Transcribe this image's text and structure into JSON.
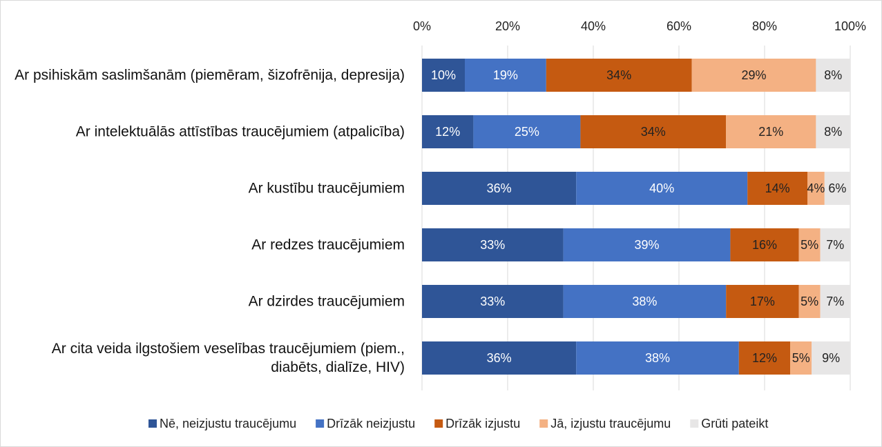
{
  "chart_data": {
    "type": "stacked-bar-horizontal",
    "categories": [
      "Ar psihiskām saslimšanām (piemēram, šizofrēnija, depresija)",
      "Ar intelektuālās attīstības traucējumiem (atpalicība)",
      "Ar kustību traucējumiem",
      "Ar redzes traucējumiem",
      "Ar dzirdes traucējumiem",
      "Ar cita veida ilgstošiem veselības traucējumiem (piem., diabēts, dialīze, HIV)"
    ],
    "series": [
      {
        "name": "Nē, neizjustu traucējumu",
        "color": "#2f5597",
        "values": [
          10,
          12,
          36,
          33,
          33,
          36
        ],
        "value_labels": [
          "10%",
          "12%",
          "36%",
          "33%",
          "33%",
          "36%"
        ]
      },
      {
        "name": "Drīzāk neizjustu",
        "color": "#4472c4",
        "values": [
          19,
          25,
          40,
          39,
          38,
          38
        ],
        "value_labels": [
          "19%",
          "25%",
          "40%",
          "39%",
          "38%",
          "38%"
        ]
      },
      {
        "name": "Drīzāk izjustu",
        "color": "#c55a11",
        "values": [
          34,
          34,
          14,
          16,
          17,
          12
        ],
        "value_labels": [
          "34%",
          "34%",
          "14%",
          "16%",
          "17%",
          "12%"
        ]
      },
      {
        "name": "Jā, izjustu traucējumu",
        "color": "#f4b183",
        "values": [
          29,
          21,
          4,
          5,
          5,
          5
        ],
        "value_labels": [
          "29%",
          "21%",
          "4%",
          "5%",
          "5%",
          "5%"
        ]
      },
      {
        "name": "Grūti pateikt",
        "color": "#e7e6e6",
        "values": [
          8,
          8,
          6,
          7,
          7,
          9
        ],
        "value_labels": [
          "8%",
          "8%",
          "6%",
          "7%",
          "7%",
          "9%"
        ]
      }
    ],
    "xlim": [
      0,
      100
    ],
    "xticks": [
      {
        "value": 0,
        "label": "0%"
      },
      {
        "value": 20,
        "label": "20%"
      },
      {
        "value": 40,
        "label": "40%"
      },
      {
        "value": 60,
        "label": "60%"
      },
      {
        "value": 80,
        "label": "80%"
      },
      {
        "value": 100,
        "label": "100%"
      }
    ],
    "grid": true,
    "legend": "bottom"
  }
}
